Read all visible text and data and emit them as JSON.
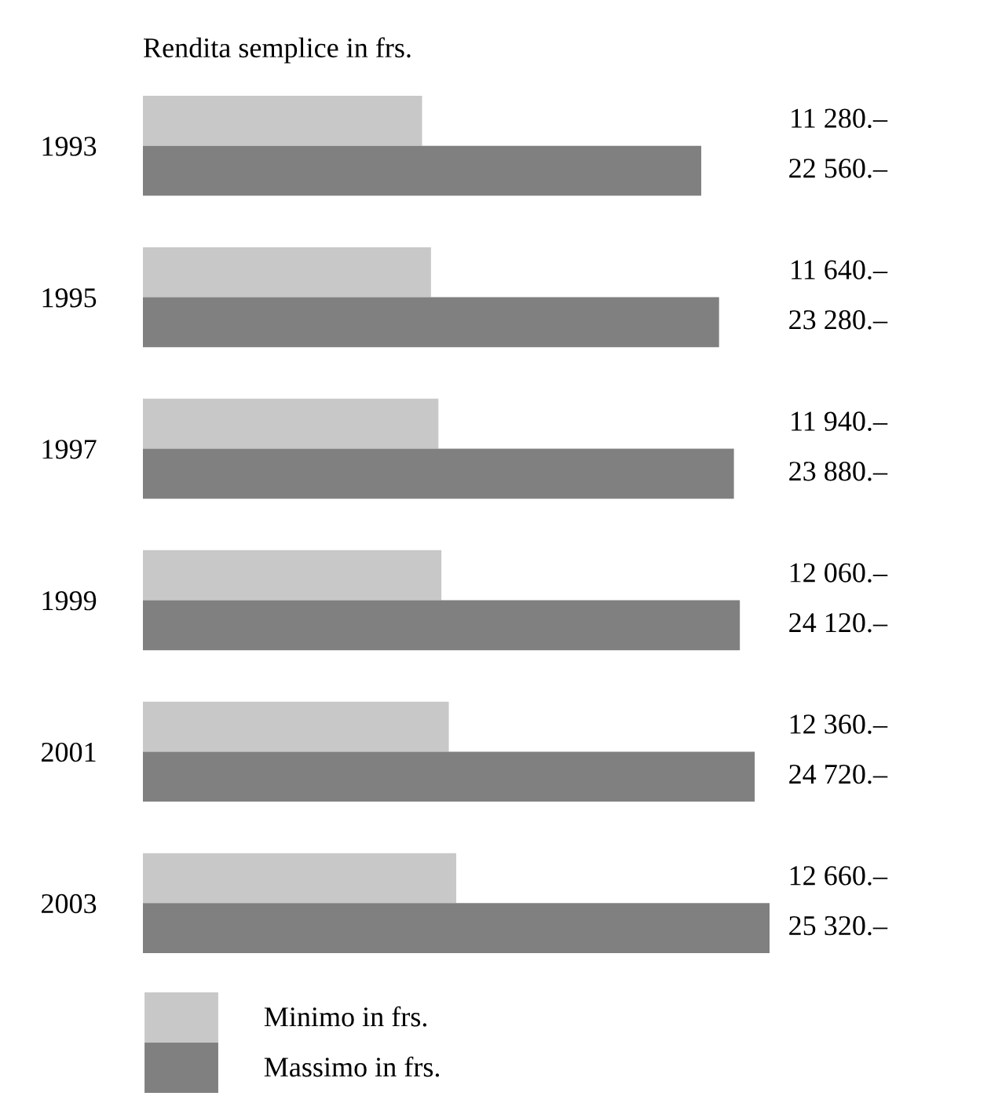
{
  "chart_data": {
    "type": "bar",
    "orientation": "horizontal",
    "title": "Rendita semplice in frs.",
    "categories": [
      "1993",
      "1995",
      "1997",
      "1999",
      "2001",
      "2003"
    ],
    "series": [
      {
        "name": "Minimo in frs.",
        "color": "#c8c8c8",
        "values": [
          11280,
          11640,
          11940,
          12060,
          12360,
          12660
        ],
        "value_labels": [
          "11 280.–",
          "11 640.–",
          "11 940.–",
          "12 060.–",
          "12 360.–",
          "12 660.–"
        ]
      },
      {
        "name": "Massimo in frs.",
        "color": "#808080",
        "values": [
          22560,
          23280,
          23880,
          24120,
          24720,
          25320
        ],
        "value_labels": [
          "22 560.–",
          "23 280.–",
          "23 880.–",
          "24 120.–",
          "24 720.–",
          "25 320.–"
        ]
      }
    ],
    "legend": "bottom left",
    "grid": false
  }
}
